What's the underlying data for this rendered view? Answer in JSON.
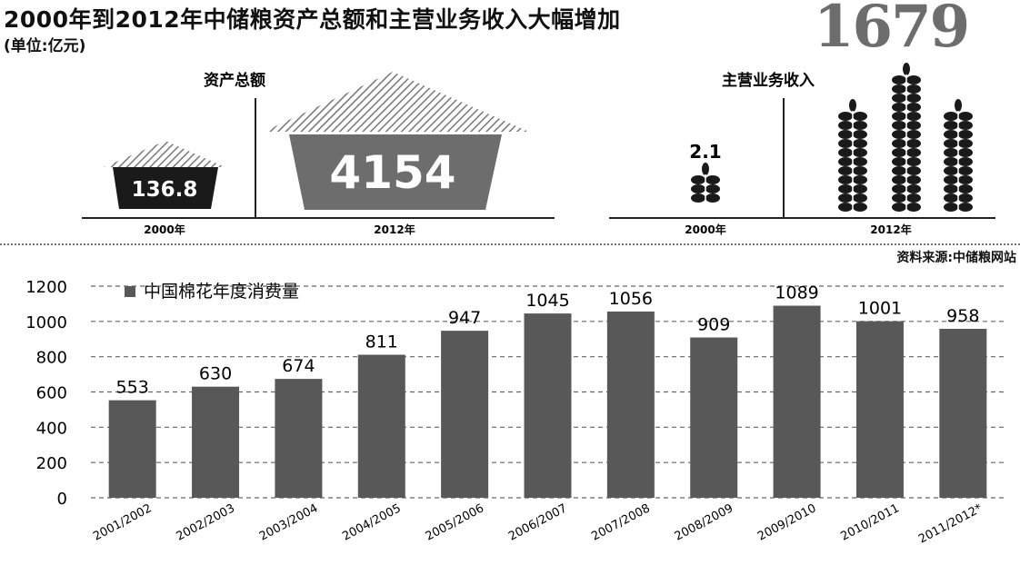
{
  "header": {
    "title": "2000年到2012年中储粮资产总额和主营业务收入大幅增加",
    "unit": "(单位:亿元)",
    "big_number": "1679"
  },
  "assets": {
    "label": "资产总额",
    "items": [
      {
        "year": "2000年",
        "value": "136.8"
      },
      {
        "year": "2012年",
        "value": "4154"
      }
    ]
  },
  "revenue": {
    "label": "主营业务收入",
    "items": [
      {
        "year": "2000年",
        "value": "2.1"
      },
      {
        "year": "2012年",
        "value": ""
      }
    ]
  },
  "source": "资料来源:中储粮网站",
  "colors": {
    "bar": "#585858",
    "dark": "#1a1a1a",
    "mid": "#6d6d6d",
    "hatch": "#777777"
  },
  "chart_data": {
    "type": "bar",
    "legend": "中国棉花年度消费量",
    "legend_position": "top-left",
    "categories": [
      "2001/2002",
      "2002/2003",
      "2003/2004",
      "2004/2005",
      "2005/2006",
      "2006/2007",
      "2007/2008",
      "2008/2009",
      "2009/2010",
      "2010/2011",
      "2011/2012*"
    ],
    "values": [
      553,
      630,
      674,
      811,
      947,
      1045,
      1056,
      909,
      1089,
      1001,
      958
    ],
    "yticks": [
      0,
      200,
      400,
      600,
      800,
      1000,
      1200
    ],
    "ylim": [
      0,
      1200
    ],
    "grid": true,
    "grid_style": "dashed"
  }
}
